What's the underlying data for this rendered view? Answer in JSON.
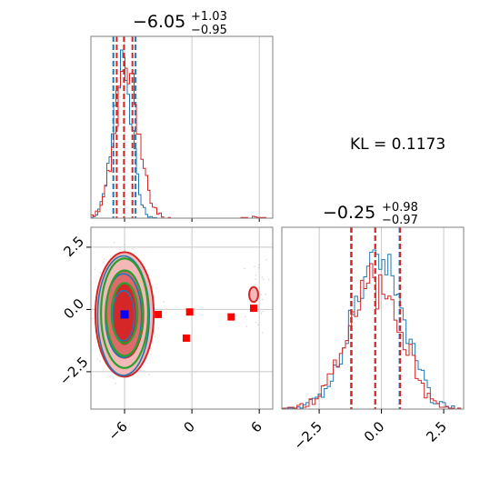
{
  "chart_data": [
    {
      "type": "histogram",
      "panel": "marginal-x",
      "title_value": "−6.05",
      "title_sup": "+1.03",
      "title_sub": "−0.95",
      "xlim": [
        -9,
        7.2
      ],
      "grid": true,
      "series": [
        {
          "color": "#1f77b4",
          "median": -6.05,
          "quantiles": [
            -7.0,
            -5.02
          ],
          "mode": -6.2,
          "width": 0.85
        },
        {
          "color": "#d62728",
          "median": -6.05,
          "quantiles": [
            -6.7,
            -5.3
          ],
          "mode": -5.8,
          "width": 1.05
        }
      ]
    },
    {
      "type": "scatter",
      "panel": "joint",
      "xlim": [
        -9,
        7.2
      ],
      "ylim": [
        -4,
        3.3
      ],
      "x_ticks": [
        "−6",
        "0",
        "6"
      ],
      "x_tick_values": [
        -6,
        0,
        6
      ],
      "y_ticks": [
        "2.5",
        "0.0",
        "−2.5"
      ],
      "y_tick_values": [
        2.5,
        0.0,
        -2.5
      ],
      "grid": true,
      "red_markers": [
        {
          "x": -3.0,
          "y": -0.2
        },
        {
          "x": -0.2,
          "y": -0.1
        },
        {
          "x": -0.5,
          "y": -1.15
        },
        {
          "x": 3.5,
          "y": -0.3
        },
        {
          "x": 5.5,
          "y": 0.05
        }
      ],
      "blue_marker": {
        "x": -6.0,
        "y": -0.2
      },
      "contours": [
        {
          "color": "#d62728",
          "cx": -6.0,
          "cy": -0.2,
          "rx": 2.6,
          "ry": 2.5
        },
        {
          "color": "#2ca02c",
          "cx": -6.0,
          "cy": -0.15,
          "rx": 2.1,
          "ry": 2.2
        },
        {
          "color": "#1f77b4",
          "cx": -6.1,
          "cy": -0.25,
          "rx": 2.3,
          "ry": 2.4
        }
      ],
      "outlier_contour": {
        "color": "#d62728",
        "cx": 5.5,
        "cy": 0.6,
        "rx": 0.4,
        "ry": 0.3
      }
    },
    {
      "type": "histogram",
      "panel": "marginal-y",
      "title_value": "−0.25",
      "title_sup": "+0.98",
      "title_sub": "−0.97",
      "xlim": [
        -4,
        3.3
      ],
      "x_ticks": [
        "−2.5",
        "0.0",
        "2.5"
      ],
      "x_tick_values": [
        -2.5,
        0.0,
        2.5
      ],
      "grid": true,
      "series": [
        {
          "color": "#1f77b4",
          "median": -0.25,
          "quantiles": [
            -1.22,
            0.73
          ],
          "mode": -0.15,
          "width": 1.0
        },
        {
          "color": "#d62728",
          "median": -0.25,
          "quantiles": [
            -1.2,
            0.75
          ],
          "mode": -0.3,
          "width": 1.05
        }
      ]
    }
  ],
  "annotation": "KL = 0.1173"
}
